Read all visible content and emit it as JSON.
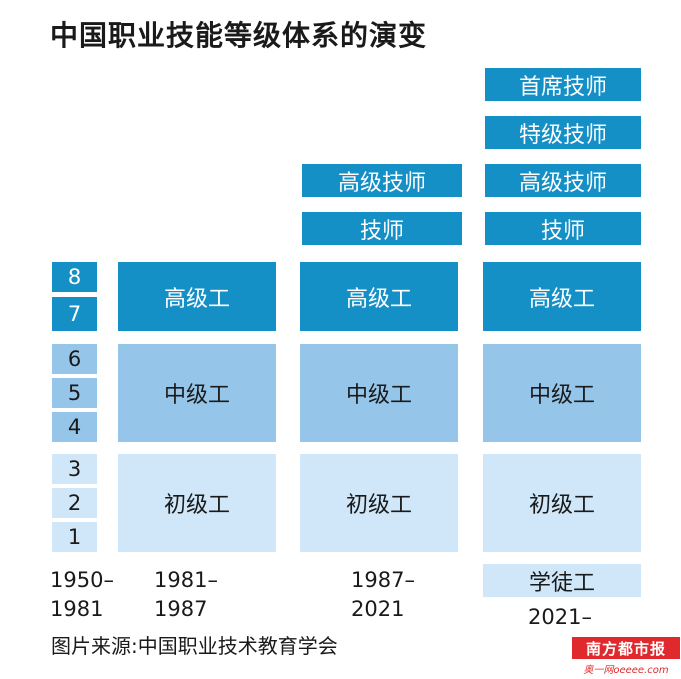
{
  "title": "中国职业技能等级体系的演变",
  "source": "图片来源:中国职业技术教育学会",
  "levels": [
    "8",
    "7",
    "6",
    "5",
    "4",
    "3",
    "2",
    "1"
  ],
  "periods": {
    "p1": "1950–\n1981",
    "p2": "1981–\n1987",
    "p3": "1987–\n2021",
    "p4": "2021–"
  },
  "grades": {
    "senior_worker": "高级工",
    "intermediate_worker": "中级工",
    "junior_worker": "初级工",
    "technician": "技师",
    "senior_technician": "高级技师",
    "special_technician": "特级技师",
    "chief_technician": "首席技师",
    "apprentice": "学徒工"
  },
  "logo": {
    "name": "南方都市报",
    "sub": "奥一网oeeee.com"
  },
  "colors": {
    "dark": "#1590c6",
    "mid": "#95c6ea",
    "light": "#cfe7f8",
    "logo": "#e0292d"
  }
}
